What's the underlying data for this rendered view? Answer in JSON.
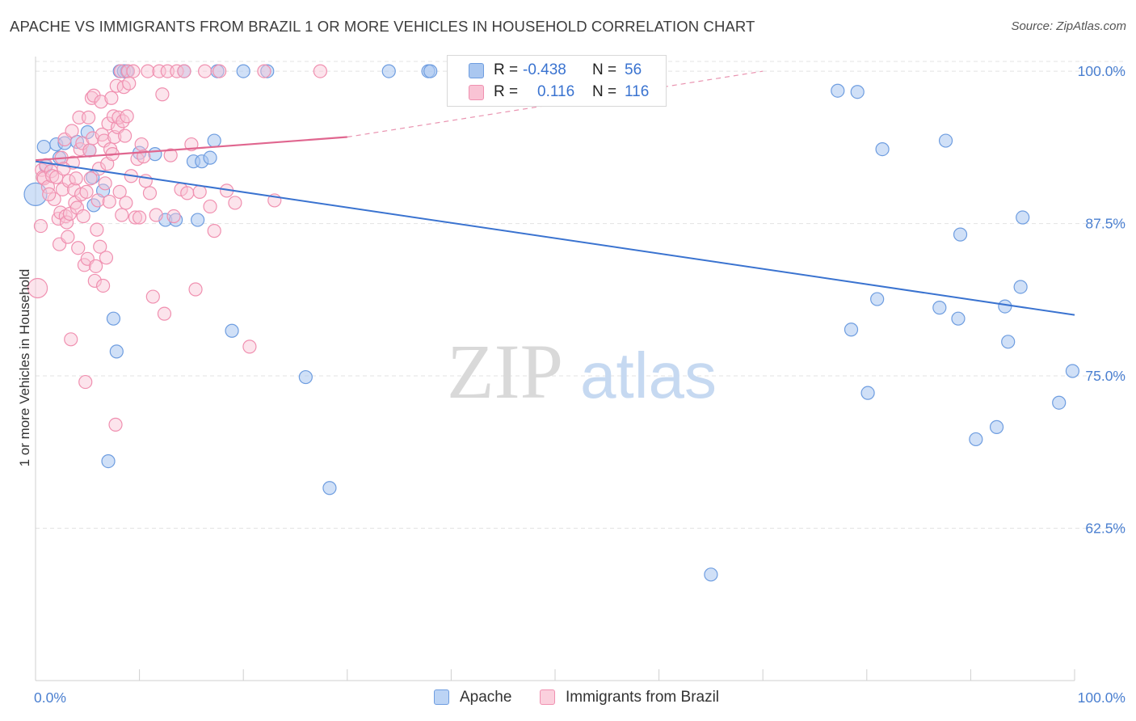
{
  "title": "APACHE VS IMMIGRANTS FROM BRAZIL 1 OR MORE VEHICLES IN HOUSEHOLD CORRELATION CHART",
  "source": "Source: ZipAtlas.com",
  "watermark": {
    "zip": "ZIP",
    "atlas": "atlas"
  },
  "legend": {
    "rows": [
      {
        "r_label": "R =",
        "r_value": "-0.438",
        "n_label": "N =",
        "n_value": "56",
        "color": "#6e9de0",
        "fill": "#aac7f0"
      },
      {
        "r_label": "R =",
        "r_value": "0.116",
        "n_label": "N =",
        "n_value": "116",
        "color": "#f090b0",
        "fill": "#f9c3d4"
      }
    ]
  },
  "bottom_legend": [
    {
      "label": "Apache",
      "color": "#6e9de0",
      "fill": "#bcd4f5"
    },
    {
      "label": "Immigrants from Brazil",
      "color": "#f090b0",
      "fill": "#fbd0dd"
    }
  ],
  "chart_data": {
    "type": "scatter",
    "title": "APACHE VS IMMIGRANTS FROM BRAZIL 1 OR MORE VEHICLES IN HOUSEHOLD CORRELATION CHART",
    "xlabel": "",
    "ylabel": "1 or more Vehicles in Household",
    "xlim": [
      0,
      100
    ],
    "ylim": [
      50,
      101.2
    ],
    "x_tick_labels": [
      "0.0%",
      "100.0%"
    ],
    "y_ticks": [
      62.5,
      75.0,
      87.5,
      100.0
    ],
    "y_tick_labels": [
      "62.5%",
      "75.0%",
      "87.5%",
      "100.0%"
    ],
    "grid": true,
    "series": [
      {
        "name": "Apache",
        "color": "#3a73d0",
        "fill": "#aac7f0",
        "trend": {
          "x": [
            0,
            100
          ],
          "y": [
            92.6,
            80.0
          ],
          "dashed_from": null
        },
        "points": [
          [
            0.0,
            89.9
          ],
          [
            0.8,
            93.8
          ],
          [
            1.0,
            92.2
          ],
          [
            2.0,
            94.0
          ],
          [
            2.3,
            92.9
          ],
          [
            2.8,
            94.1
          ],
          [
            4.0,
            94.2
          ],
          [
            5.0,
            95.0
          ],
          [
            5.2,
            93.5
          ],
          [
            5.5,
            91.3
          ],
          [
            5.6,
            89.0
          ],
          [
            6.5,
            90.2
          ],
          [
            7.0,
            68.0
          ],
          [
            7.5,
            79.7
          ],
          [
            7.8,
            77.0
          ],
          [
            8.1,
            100
          ],
          [
            8.5,
            100
          ],
          [
            8.8,
            100
          ],
          [
            10.0,
            93.3
          ],
          [
            11.5,
            93.2
          ],
          [
            12.5,
            87.8
          ],
          [
            13.5,
            87.8
          ],
          [
            14.3,
            100
          ],
          [
            15.2,
            92.6
          ],
          [
            15.6,
            87.8
          ],
          [
            16.0,
            92.6
          ],
          [
            16.8,
            92.9
          ],
          [
            17.2,
            94.3
          ],
          [
            17.5,
            100
          ],
          [
            18.9,
            78.7
          ],
          [
            20.0,
            100
          ],
          [
            22.3,
            100
          ],
          [
            26.0,
            74.9
          ],
          [
            28.3,
            65.8
          ],
          [
            34.0,
            100
          ],
          [
            37.8,
            100
          ],
          [
            38.0,
            100
          ],
          [
            65.0,
            58.7
          ],
          [
            77.2,
            98.4
          ],
          [
            79.1,
            98.3
          ],
          [
            78.5,
            78.8
          ],
          [
            80.1,
            73.6
          ],
          [
            81.0,
            81.3
          ],
          [
            81.5,
            93.6
          ],
          [
            87.0,
            80.6
          ],
          [
            87.6,
            94.3
          ],
          [
            88.8,
            79.7
          ],
          [
            89.0,
            86.6
          ],
          [
            90.5,
            69.8
          ],
          [
            92.5,
            70.8
          ],
          [
            93.3,
            80.7
          ],
          [
            93.6,
            77.8
          ],
          [
            94.8,
            82.3
          ],
          [
            98.5,
            72.8
          ],
          [
            99.8,
            75.4
          ],
          [
            95.0,
            88.0
          ]
        ]
      },
      {
        "name": "Immigrants from Brazil",
        "color": "#e0668f",
        "fill": "#f9c3d4",
        "trend": {
          "x": [
            0,
            30,
            70
          ],
          "y": [
            92.7,
            94.6,
            100.0
          ],
          "dashed_from": 30
        },
        "points": [
          [
            0.2,
            82.2
          ],
          [
            0.5,
            87.3
          ],
          [
            0.6,
            91.9
          ],
          [
            0.7,
            91.3
          ],
          [
            0.8,
            91.2
          ],
          [
            1.0,
            92.3
          ],
          [
            1.2,
            90.5
          ],
          [
            1.5,
            91.8
          ],
          [
            1.6,
            91.4
          ],
          [
            1.8,
            89.5
          ],
          [
            2.0,
            91.3
          ],
          [
            2.2,
            87.9
          ],
          [
            2.3,
            85.8
          ],
          [
            2.4,
            88.4
          ],
          [
            2.5,
            92.9
          ],
          [
            2.6,
            90.3
          ],
          [
            2.8,
            94.4
          ],
          [
            2.9,
            88.1
          ],
          [
            3.0,
            87.6
          ],
          [
            3.1,
            86.4
          ],
          [
            3.2,
            91.0
          ],
          [
            3.3,
            88.3
          ],
          [
            3.4,
            78.0
          ],
          [
            3.5,
            95.1
          ],
          [
            3.6,
            92.5
          ],
          [
            3.7,
            90.3
          ],
          [
            3.8,
            89.2
          ],
          [
            3.9,
            91.2
          ],
          [
            4.0,
            88.8
          ],
          [
            4.1,
            85.5
          ],
          [
            4.2,
            96.2
          ],
          [
            4.3,
            93.6
          ],
          [
            4.4,
            89.9
          ],
          [
            4.5,
            94.1
          ],
          [
            4.6,
            88.1
          ],
          [
            4.7,
            84.1
          ],
          [
            4.8,
            74.5
          ],
          [
            4.9,
            90.1
          ],
          [
            5.0,
            84.6
          ],
          [
            5.1,
            96.2
          ],
          [
            5.2,
            93.5
          ],
          [
            5.3,
            91.2
          ],
          [
            5.4,
            97.8
          ],
          [
            5.5,
            94.5
          ],
          [
            5.6,
            98.0
          ],
          [
            5.7,
            82.8
          ],
          [
            5.8,
            84.0
          ],
          [
            5.9,
            87.0
          ],
          [
            6.0,
            89.4
          ],
          [
            6.1,
            92.0
          ],
          [
            6.2,
            85.6
          ],
          [
            6.3,
            97.5
          ],
          [
            6.4,
            94.8
          ],
          [
            6.5,
            82.4
          ],
          [
            6.6,
            94.3
          ],
          [
            6.8,
            84.7
          ],
          [
            6.9,
            92.4
          ],
          [
            7.0,
            95.7
          ],
          [
            7.1,
            89.3
          ],
          [
            7.2,
            93.6
          ],
          [
            7.3,
            97.8
          ],
          [
            7.4,
            93.2
          ],
          [
            7.5,
            96.3
          ],
          [
            7.6,
            94.6
          ],
          [
            7.7,
            71.0
          ],
          [
            7.8,
            98.8
          ],
          [
            7.9,
            95.4
          ],
          [
            8.0,
            96.2
          ],
          [
            8.1,
            90.1
          ],
          [
            8.2,
            100
          ],
          [
            8.3,
            88.2
          ],
          [
            8.4,
            95.9
          ],
          [
            8.5,
            98.7
          ],
          [
            8.6,
            94.7
          ],
          [
            8.7,
            89.2
          ],
          [
            8.8,
            96.3
          ],
          [
            8.9,
            100
          ],
          [
            9.0,
            99.0
          ],
          [
            9.2,
            91.4
          ],
          [
            9.4,
            100
          ],
          [
            9.6,
            88.0
          ],
          [
            9.8,
            92.8
          ],
          [
            10.0,
            88.0
          ],
          [
            10.2,
            94.0
          ],
          [
            10.4,
            93.0
          ],
          [
            10.6,
            91.0
          ],
          [
            10.8,
            100
          ],
          [
            11.0,
            90.0
          ],
          [
            11.3,
            81.5
          ],
          [
            11.6,
            88.2
          ],
          [
            11.9,
            100
          ],
          [
            12.2,
            98.1
          ],
          [
            12.4,
            80.1
          ],
          [
            12.7,
            100
          ],
          [
            13.0,
            93.1
          ],
          [
            13.3,
            88.1
          ],
          [
            13.6,
            100
          ],
          [
            14.0,
            90.3
          ],
          [
            14.3,
            100
          ],
          [
            14.6,
            90.0
          ],
          [
            15.0,
            94.0
          ],
          [
            15.4,
            82.1
          ],
          [
            15.8,
            90.1
          ],
          [
            16.3,
            100
          ],
          [
            16.8,
            88.9
          ],
          [
            17.2,
            86.9
          ],
          [
            17.7,
            100
          ],
          [
            18.4,
            90.2
          ],
          [
            19.2,
            89.2
          ],
          [
            20.6,
            77.4
          ],
          [
            22.0,
            100
          ],
          [
            23.0,
            89.4
          ],
          [
            27.4,
            100
          ],
          [
            1.3,
            89.9
          ],
          [
            2.7,
            92.0
          ],
          [
            6.7,
            90.8
          ]
        ]
      }
    ]
  }
}
